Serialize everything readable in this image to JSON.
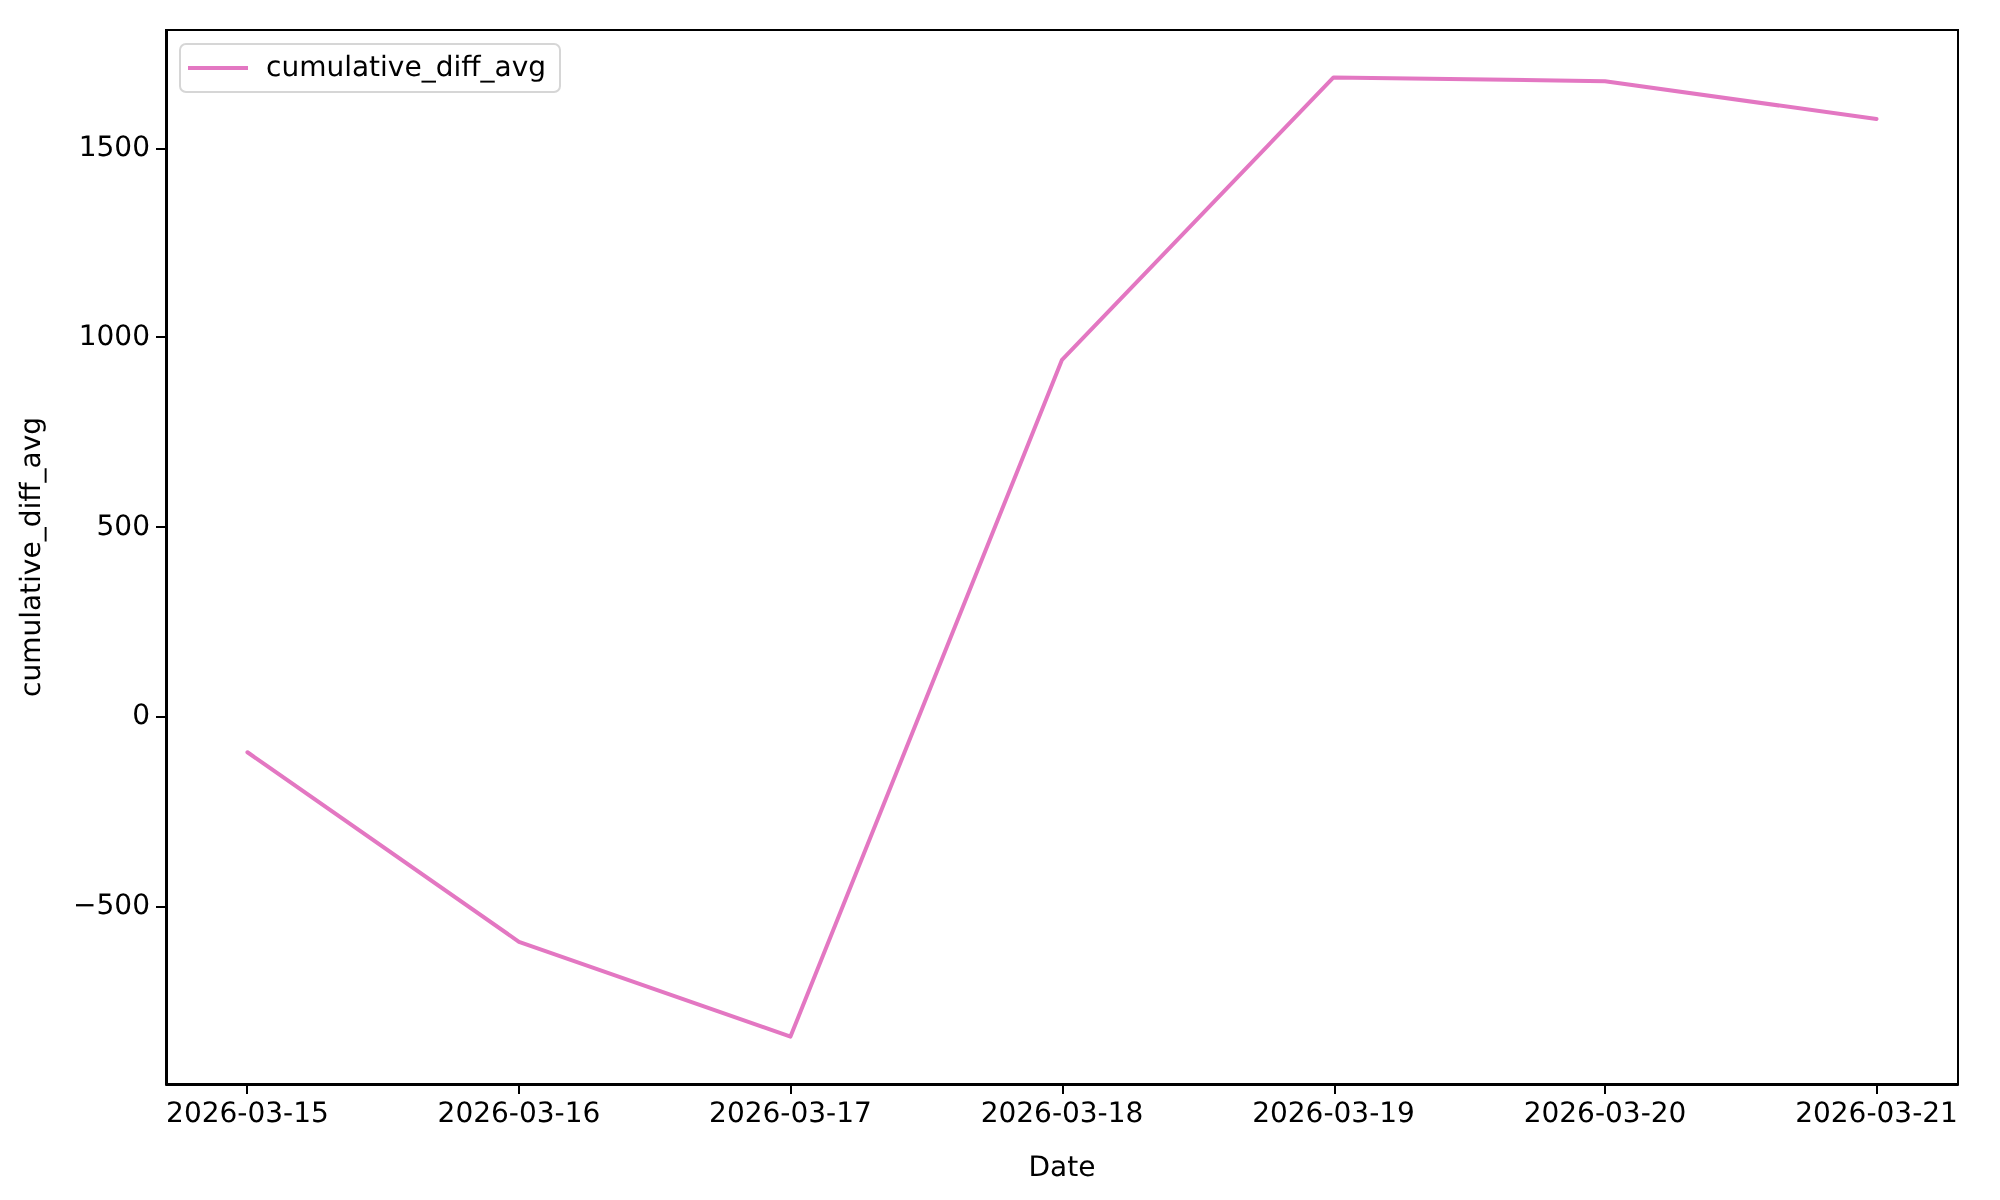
{
  "chart_data": {
    "type": "line",
    "xlabel": "Date",
    "ylabel": "cumulative_diff_avg",
    "x": [
      "2026-03-15",
      "2026-03-16",
      "2026-03-17",
      "2026-03-18",
      "2026-03-19",
      "2026-03-20",
      "2026-03-21"
    ],
    "series": [
      {
        "name": "cumulative_diff_avg",
        "color": "#e377c2",
        "values": [
          -95,
          -595,
          -845,
          940,
          1685,
          1675,
          1575
        ]
      }
    ],
    "xlim": [
      "2026-03-14T16:48",
      "2026-03-21T07:12"
    ],
    "xticks": [
      "2026-03-15",
      "2026-03-16",
      "2026-03-17",
      "2026-03-18",
      "2026-03-19",
      "2026-03-20",
      "2026-03-21"
    ],
    "ylim": [
      -970,
      1810
    ],
    "yticks": [
      {
        "value": -500,
        "label": "−500"
      },
      0,
      500,
      1000,
      1500
    ],
    "grid": false,
    "legend": "top left",
    "marker": "none",
    "line_style": "solid"
  }
}
